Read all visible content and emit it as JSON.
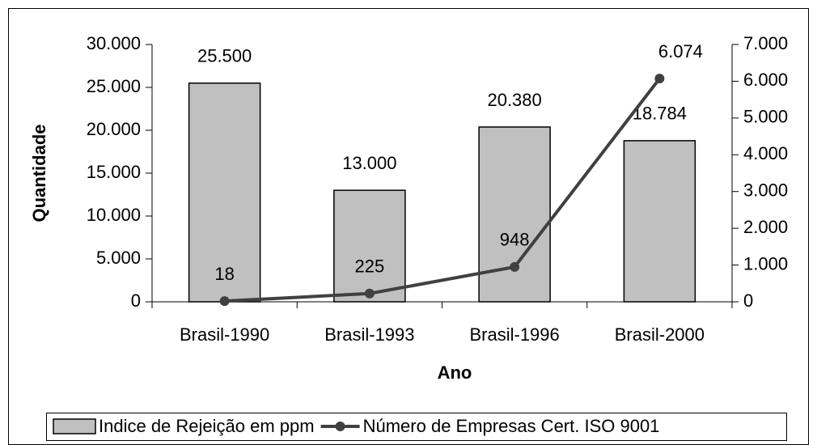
{
  "chart_data": {
    "type": "bar",
    "categories": [
      "Brasil-1990",
      "Brasil-1993",
      "Brasil-1996",
      "Brasil-2000"
    ],
    "x_label": "Ano",
    "y_label": "Quantidade",
    "series": [
      {
        "name": "Indice de Rejeição em ppm",
        "type": "bar",
        "color": "#c0c0c0",
        "axis": "y",
        "values": [
          25500,
          13000,
          20380,
          18784
        ],
        "value_labels": [
          "25.500",
          "13.000",
          "20.380",
          "18.784"
        ]
      },
      {
        "name": "Número de Empresas Cert. ISO 9001",
        "type": "line",
        "color": "#404040",
        "axis": "y2",
        "values": [
          18,
          225,
          948,
          6074
        ],
        "value_labels": [
          "18",
          "225",
          "948",
          "6.074"
        ]
      }
    ],
    "ylim": [
      0,
      30000
    ],
    "yticks": [
      0,
      {
        "value": 5000,
        "label": "5.000"
      },
      {
        "value": 10000,
        "label": "10.000"
      },
      {
        "value": 15000,
        "label": "15.000"
      },
      {
        "value": 20000,
        "label": "20.000"
      },
      {
        "value": 25000,
        "label": "25.000"
      },
      {
        "value": 30000,
        "label": "30.000"
      }
    ],
    "y2lim": [
      0,
      7000
    ],
    "y2ticks": [
      0,
      {
        "value": 1000,
        "label": "1.000"
      },
      {
        "value": 2000,
        "label": "2.000"
      },
      {
        "value": 3000,
        "label": "3.000"
      },
      {
        "value": 4000,
        "label": "4.000"
      },
      {
        "value": 5000,
        "label": "5.000"
      },
      {
        "value": 6000,
        "label": "6.000"
      },
      {
        "value": 7000,
        "label": "7.000"
      }
    ],
    "grid": false,
    "legend": "bottom"
  }
}
